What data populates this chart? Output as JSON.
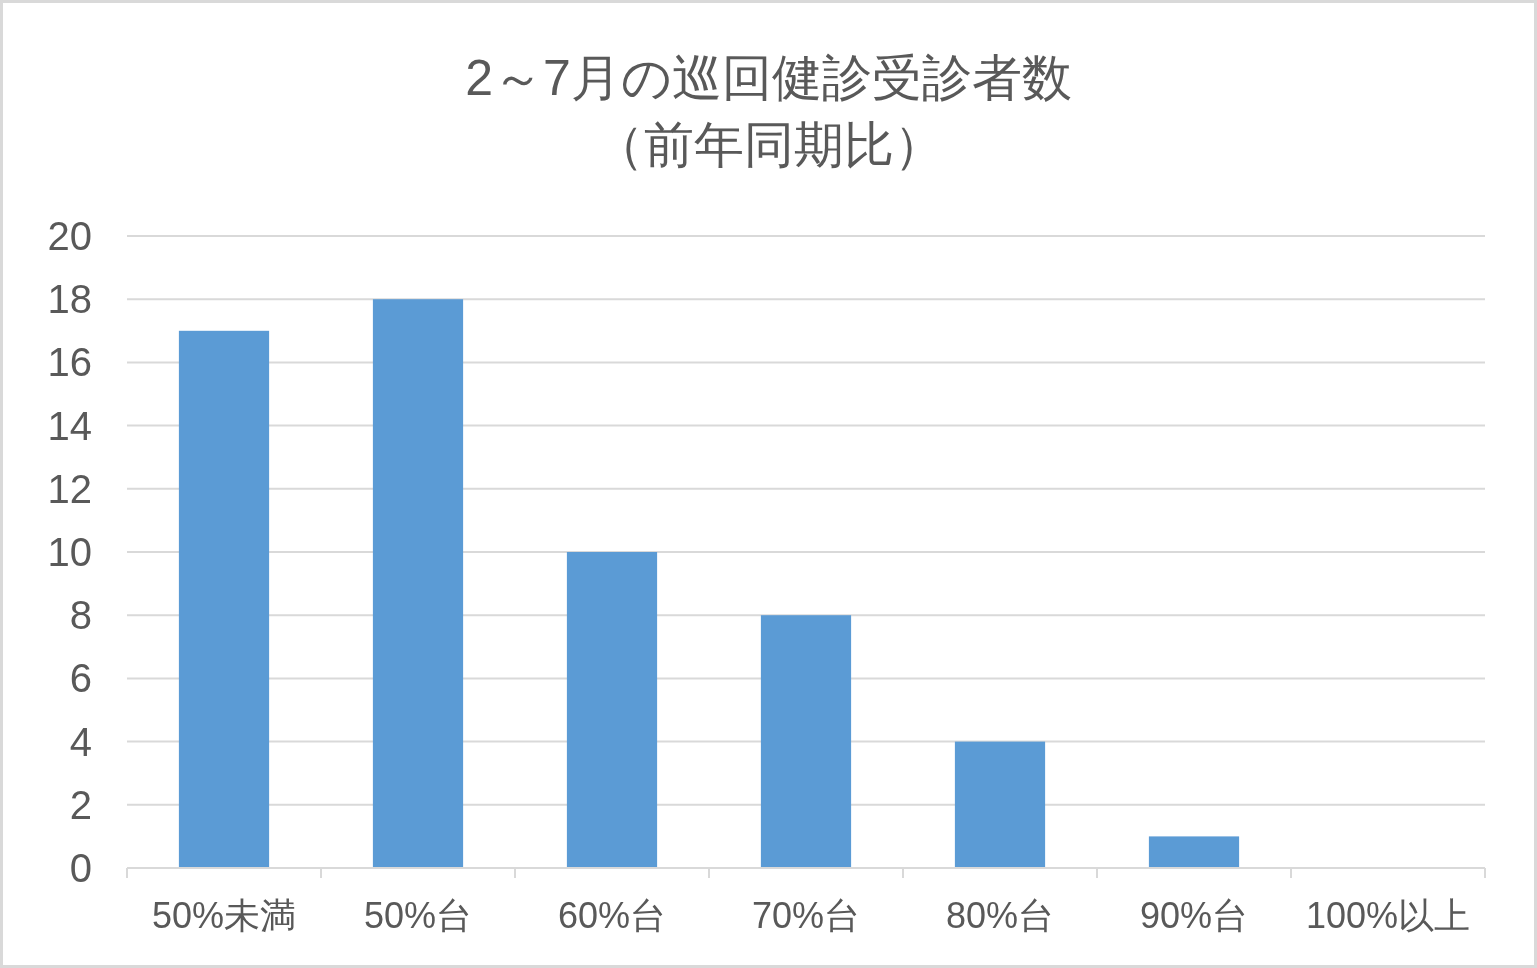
{
  "chart_data": {
    "type": "bar",
    "title": "2～7月の巡回健診受診者数",
    "subtitle": "（前年同期比）",
    "categories": [
      "50%未満",
      "50%台",
      "60%台",
      "70%台",
      "80%台",
      "90%台",
      "100%以上"
    ],
    "values": [
      17,
      18,
      10,
      8,
      4,
      1,
      0
    ],
    "color": "#5b9bd5",
    "ylim": [
      0,
      20
    ],
    "yticks": [
      0,
      2,
      4,
      6,
      8,
      10,
      12,
      14,
      16,
      18,
      20
    ],
    "grid": "y"
  }
}
